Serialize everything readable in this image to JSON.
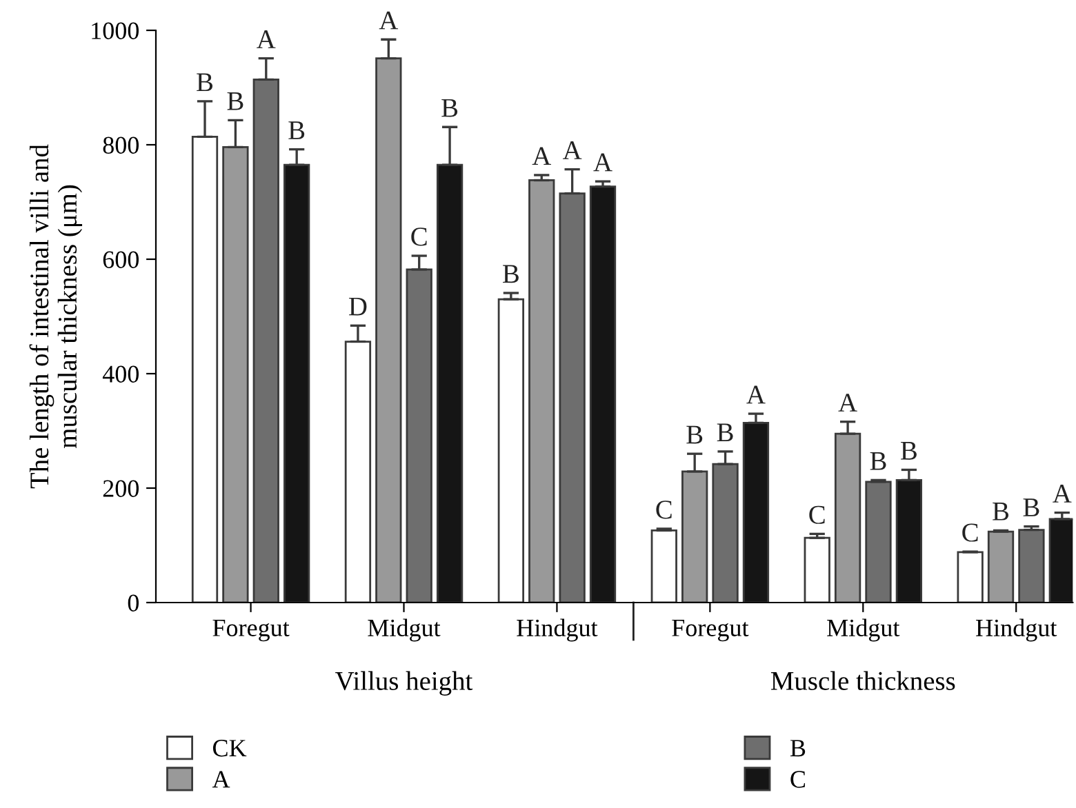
{
  "chart_data": {
    "type": "bar",
    "categories": [
      "Foregut",
      "Midgut",
      "Hindgut",
      "Foregut",
      "Midgut",
      "Hindgut"
    ],
    "series": [
      {
        "name": "CK",
        "color": "#ffffff",
        "values": [
          814,
          456,
          530,
          126,
          113,
          88
        ],
        "errors": [
          62,
          28,
          11,
          3,
          7,
          1
        ],
        "value_labels": [
          "B",
          "D",
          "B",
          "C",
          "C",
          "C"
        ]
      },
      {
        "name": "A",
        "color": "#999999",
        "values": [
          796,
          951,
          738,
          229,
          295,
          124
        ],
        "errors": [
          47,
          33,
          9,
          31,
          21,
          2
        ],
        "value_labels": [
          "B",
          "A",
          "A",
          "B",
          "A",
          "B"
        ]
      },
      {
        "name": "B",
        "color": "#6e6e6e",
        "values": [
          914,
          582,
          715,
          242,
          211,
          127
        ],
        "errors": [
          37,
          24,
          42,
          22,
          3,
          6
        ],
        "value_labels": [
          "A",
          "C",
          "A",
          "B",
          "B",
          "B"
        ]
      },
      {
        "name": "C",
        "color": "#151515",
        "values": [
          765,
          765,
          727,
          314,
          214,
          146
        ],
        "errors": [
          27,
          66,
          9,
          16,
          18,
          11
        ],
        "value_labels": [
          "B",
          "B",
          "A",
          "A",
          "B",
          "A"
        ]
      }
    ],
    "ylabel": "The length of intestinal villi and\nmuscular thickness (μm)",
    "ylim": [
      0,
      1000
    ],
    "yticks": [
      0,
      200,
      400,
      600,
      800,
      1000
    ],
    "annotations": [
      "Villus height",
      "Muscle thickness"
    ],
    "grid": false,
    "legend": "bottom"
  }
}
